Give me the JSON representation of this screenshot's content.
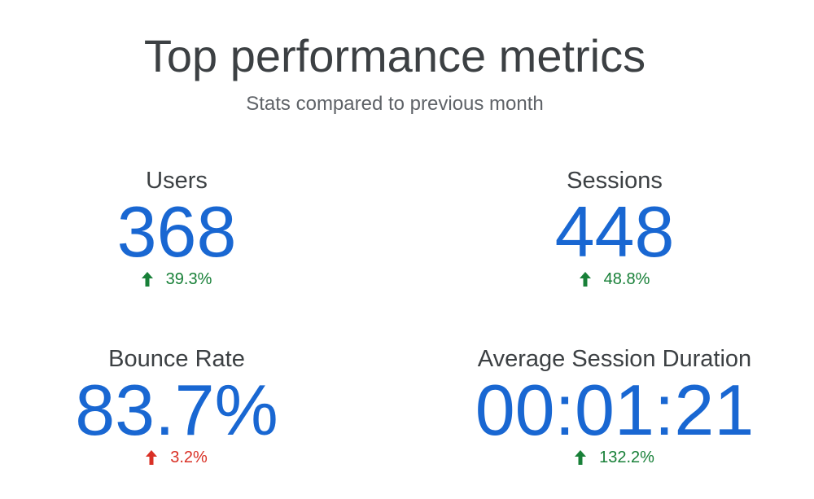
{
  "header": {
    "title": "Top performance metrics",
    "subtitle": "Stats compared to previous month"
  },
  "colors": {
    "value": "#1967d2",
    "positive": "#188038",
    "negative": "#d93025",
    "text": "#3c4043"
  },
  "metrics": {
    "users": {
      "label": "Users",
      "value": "368",
      "change": "39.3%",
      "trend_icon": "arrow-up-icon",
      "trend_color": "#188038"
    },
    "sessions": {
      "label": "Sessions",
      "value": "448",
      "change": "48.8%",
      "trend_icon": "arrow-up-icon",
      "trend_color": "#188038"
    },
    "bounce_rate": {
      "label": "Bounce Rate",
      "value": "83.7%",
      "change": "3.2%",
      "trend_icon": "arrow-up-icon",
      "trend_color": "#d93025"
    },
    "avg_session_duration": {
      "label": "Average Session Duration",
      "value": "00:01:21",
      "change": "132.2%",
      "trend_icon": "arrow-up-icon",
      "trend_color": "#188038"
    }
  }
}
